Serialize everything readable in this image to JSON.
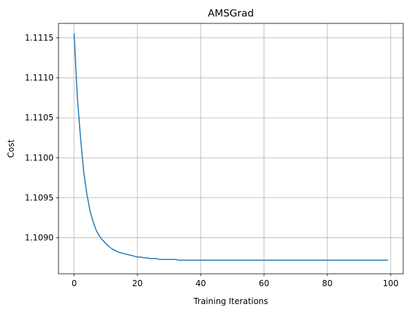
{
  "chart_data": {
    "type": "line",
    "title": "AMSGrad",
    "xlabel": "Training Iterations",
    "ylabel": "Cost",
    "xlim": [
      -4.95,
      103.95
    ],
    "ylim": [
      1.10855,
      1.11168
    ],
    "grid": true,
    "xticks": [
      0,
      20,
      40,
      60,
      80,
      100
    ],
    "xtick_labels": [
      "0",
      "20",
      "40",
      "60",
      "80",
      "100"
    ],
    "yticks": [
      1.109,
      1.1095,
      1.11,
      1.1105,
      1.111,
      1.1115
    ],
    "ytick_labels": [
      "1.1090",
      "1.1095",
      "1.1100",
      "1.1105",
      "1.1110",
      "1.1115"
    ],
    "series": [
      {
        "color": "#1f77b4",
        "x": [
          0,
          1,
          2,
          3,
          4,
          5,
          6,
          7,
          8,
          9,
          10,
          11,
          12,
          13,
          14,
          15,
          16,
          17,
          18,
          19,
          20,
          21,
          22,
          23,
          24,
          25,
          26,
          27,
          28,
          29,
          30,
          31,
          32,
          33,
          34,
          35,
          36,
          37,
          38,
          39,
          40,
          41,
          42,
          43,
          44,
          45,
          46,
          47,
          48,
          49,
          50,
          51,
          52,
          53,
          54,
          55,
          56,
          57,
          58,
          59,
          60,
          61,
          62,
          63,
          64,
          65,
          66,
          67,
          68,
          69,
          70,
          71,
          72,
          73,
          74,
          75,
          76,
          77,
          78,
          79,
          80,
          81,
          82,
          83,
          84,
          85,
          86,
          87,
          88,
          89,
          90,
          91,
          92,
          93,
          94,
          95,
          96,
          97,
          98,
          99
        ],
        "y": [
          1.11155,
          1.11076,
          1.11026,
          1.10983,
          1.10955,
          1.10934,
          1.1092,
          1.10909,
          1.10902,
          1.10897,
          1.10893,
          1.10889,
          1.10886,
          1.10884,
          1.10882,
          1.10881,
          1.1088,
          1.10879,
          1.10878,
          1.10877,
          1.10876,
          1.10876,
          1.10875,
          1.10875,
          1.10874,
          1.10874,
          1.10874,
          1.10873,
          1.10873,
          1.10873,
          1.10873,
          1.10873,
          1.10873,
          1.10872,
          1.10872,
          1.10872,
          1.10872,
          1.10872,
          1.10872,
          1.10872,
          1.10872,
          1.10872,
          1.10872,
          1.10872,
          1.10872,
          1.10872,
          1.10872,
          1.10872,
          1.10872,
          1.10872,
          1.10872,
          1.10872,
          1.10872,
          1.10872,
          1.10872,
          1.10872,
          1.10872,
          1.10872,
          1.10872,
          1.10872,
          1.10872,
          1.10872,
          1.10872,
          1.10872,
          1.10872,
          1.10872,
          1.10872,
          1.10872,
          1.10872,
          1.10872,
          1.10872,
          1.10872,
          1.10872,
          1.10872,
          1.10872,
          1.10872,
          1.10872,
          1.10872,
          1.10872,
          1.10872,
          1.10872,
          1.10872,
          1.10872,
          1.10872,
          1.10872,
          1.10872,
          1.10872,
          1.10872,
          1.10872,
          1.10872,
          1.10872,
          1.10872,
          1.10872,
          1.10872,
          1.10872,
          1.10872,
          1.10872,
          1.10872,
          1.10872,
          1.10872
        ]
      }
    ]
  }
}
